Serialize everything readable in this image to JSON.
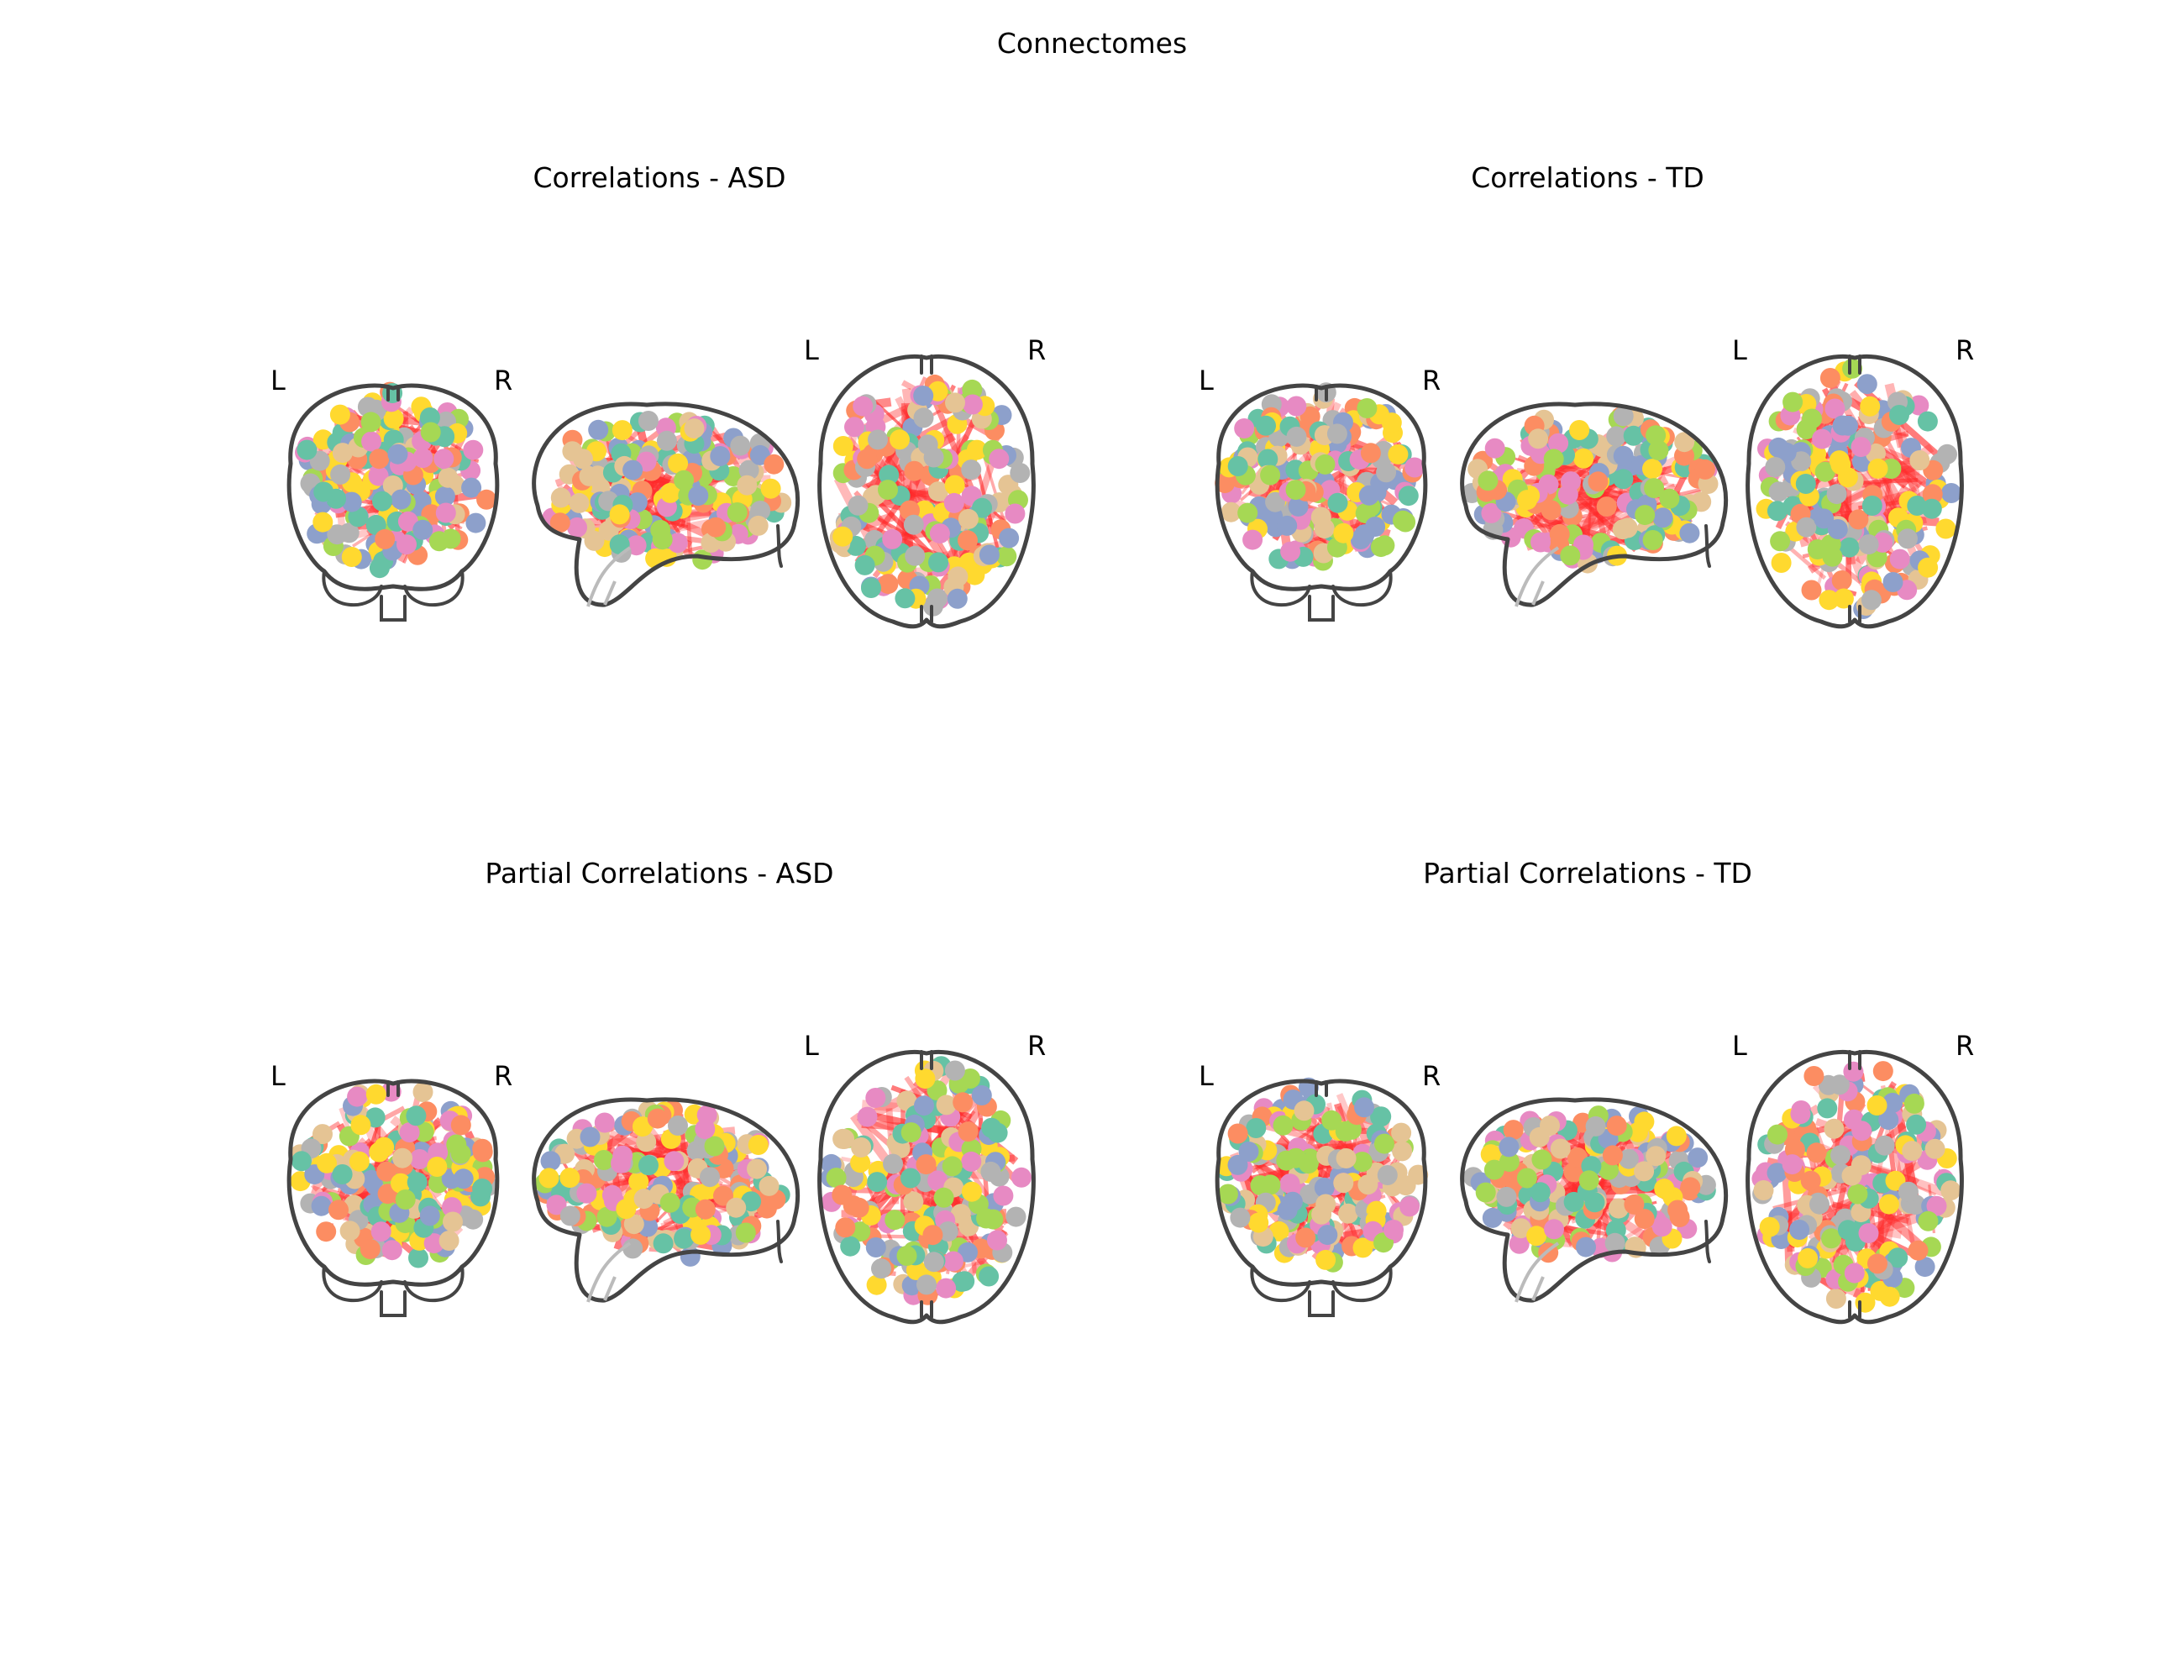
{
  "figure": {
    "title": "Connectomes"
  },
  "views": [
    "coronal",
    "sagittal",
    "axial"
  ],
  "hemisphere_labels": {
    "left": "L",
    "right": "R"
  },
  "node_colors": [
    "#66c2a5",
    "#fc8d62",
    "#8da0cb",
    "#e78ac3",
    "#a6d854",
    "#ffd92f",
    "#e5c494",
    "#b3b3b3"
  ],
  "edge_color": "#ff2a2a",
  "outline_color": "#444444",
  "panels": [
    {
      "title": "Correlations - ASD"
    },
    {
      "title": "Correlations - TD"
    },
    {
      "title": "Partial Correlations - ASD"
    },
    {
      "title": "Partial Correlations - TD"
    }
  ]
}
